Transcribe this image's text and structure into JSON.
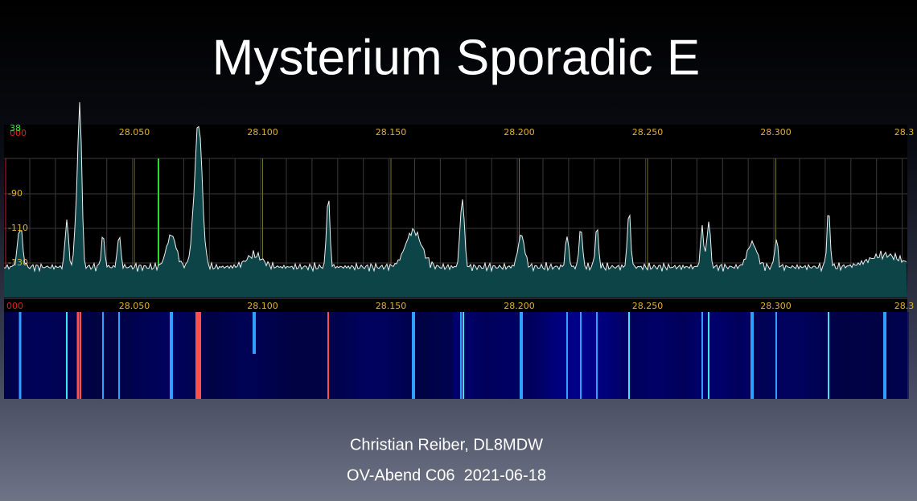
{
  "title": "Mysterium Sporadic E",
  "spectrum": {
    "corner_labels": [
      "000",
      "38"
    ],
    "freq_labels": [
      "28.050",
      "28.100",
      "28.150",
      "28.200",
      "28.250",
      "28.300",
      "28.3"
    ],
    "level_labels": [
      "-90",
      "-110",
      "-130"
    ]
  },
  "waterfall": {
    "corner_label": "000",
    "freq_labels": [
      "28.050",
      "28.100",
      "28.150",
      "28.200",
      "28.250",
      "28.300",
      "28.3"
    ]
  },
  "footer": {
    "author": "Christian Reiber, DL8MDW",
    "event": "OV-Abend C06  2021-06-18"
  }
}
